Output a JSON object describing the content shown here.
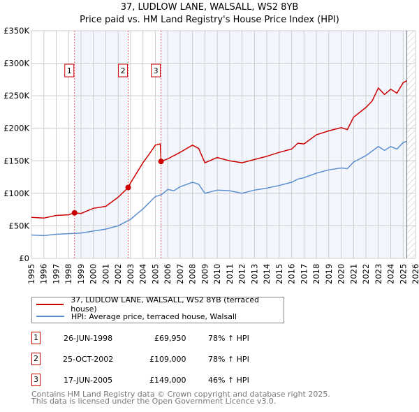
{
  "title": "37, LUDLOW LANE, WALSALL, WS2 8YB",
  "subtitle": "Price paid vs. HM Land Registry's House Price Index (HPI)",
  "chart_data": {
    "type": "line",
    "xlim": [
      1995,
      2026
    ],
    "ylim": [
      0,
      350000
    ],
    "yticks": [
      {
        "v": 0,
        "label": "£0"
      },
      {
        "v": 50000,
        "label": "£50K"
      },
      {
        "v": 100000,
        "label": "£100K"
      },
      {
        "v": 150000,
        "label": "£150K"
      },
      {
        "v": 200000,
        "label": "£200K"
      },
      {
        "v": 250000,
        "label": "£250K"
      },
      {
        "v": 300000,
        "label": "£300K"
      },
      {
        "v": 350000,
        "label": "£350K"
      }
    ],
    "xticks": [
      "1995",
      "1996",
      "1997",
      "1998",
      "1999",
      "2000",
      "2001",
      "2002",
      "2003",
      "2004",
      "2005",
      "2006",
      "2007",
      "2008",
      "2009",
      "2010",
      "2011",
      "2012",
      "2013",
      "2014",
      "2015",
      "2016",
      "2017",
      "2018",
      "2019",
      "2020",
      "2021",
      "2022",
      "2023",
      "2024",
      "2025",
      "2026"
    ],
    "series": [
      {
        "name": "37, LUDLOW LANE, WALSALL, WS2 8YB (terraced house)",
        "color": "#cc0000",
        "x": [
          1995,
          1996,
          1997,
          1998,
          1998.48,
          1999,
          2000,
          2001,
          2002,
          2002.81,
          2003,
          2004,
          2004.5,
          2005,
          2005.4,
          2005.46,
          2006,
          2007,
          2008,
          2008.5,
          2009,
          2010,
          2011,
          2012,
          2013,
          2014,
          2015,
          2016,
          2016.5,
          2017,
          2018,
          2019,
          2020,
          2020.5,
          2021,
          2022,
          2022.5,
          2023,
          2023.5,
          2024,
          2024.5,
          2025,
          2025.3
        ],
        "y": [
          63000,
          62000,
          66000,
          67000,
          69950,
          69000,
          77000,
          80000,
          94000,
          109000,
          116000,
          147000,
          160000,
          174000,
          176000,
          149000,
          153000,
          163000,
          174000,
          169000,
          147000,
          155000,
          150000,
          147000,
          152000,
          157000,
          163000,
          168000,
          177000,
          176000,
          190000,
          196000,
          201000,
          198000,
          217000,
          232000,
          242000,
          262000,
          252000,
          260000,
          254000,
          270000,
          273000
        ]
      },
      {
        "name": "HPI: Average price, terraced house, Walsall",
        "color": "#5b8fd0",
        "x": [
          1995,
          1996,
          1997,
          1998,
          1999,
          2000,
          2001,
          2002,
          2003,
          2004,
          2005,
          2005.5,
          2006,
          2006.5,
          2007,
          2008,
          2008.5,
          2009,
          2010,
          2011,
          2012,
          2013,
          2014,
          2015,
          2016,
          2016.5,
          2017,
          2018,
          2019,
          2020,
          2020.5,
          2021,
          2022,
          2023,
          2023.5,
          2024,
          2024.5,
          2025,
          2025.3
        ],
        "y": [
          36000,
          35000,
          37000,
          38000,
          39000,
          42000,
          45000,
          50000,
          60000,
          76000,
          95000,
          98000,
          106000,
          104000,
          110000,
          117000,
          114000,
          100000,
          105000,
          104000,
          100000,
          105000,
          108000,
          112000,
          117000,
          122000,
          124000,
          131000,
          136000,
          139000,
          138000,
          148000,
          158000,
          172000,
          166000,
          172000,
          168000,
          178000,
          180000
        ]
      }
    ],
    "sales": [
      {
        "label": "1",
        "x": 1998.48,
        "y": 69950
      },
      {
        "label": "2",
        "x": 2002.81,
        "y": 109000
      },
      {
        "label": "3",
        "x": 2005.46,
        "y": 149000
      }
    ],
    "data_end": 2025.3
  },
  "legend": [
    {
      "label": "37, LUDLOW LANE, WALSALL, WS2 8YB (terraced house)"
    },
    {
      "label": "HPI: Average price, terraced house, Walsall"
    }
  ],
  "transactions": [
    {
      "num": "1",
      "date": "26-JUN-1998",
      "price": "£69,950",
      "hpi": "78% ↑ HPI"
    },
    {
      "num": "2",
      "date": "25-OCT-2002",
      "price": "£109,000",
      "hpi": "78% ↑ HPI"
    },
    {
      "num": "3",
      "date": "17-JUN-2005",
      "price": "£149,000",
      "hpi": "46% ↑ HPI"
    }
  ],
  "footer": [
    "Contains HM Land Registry data © Crown copyright and database right 2025.",
    "This data is licensed under the Open Government Licence v3.0."
  ]
}
